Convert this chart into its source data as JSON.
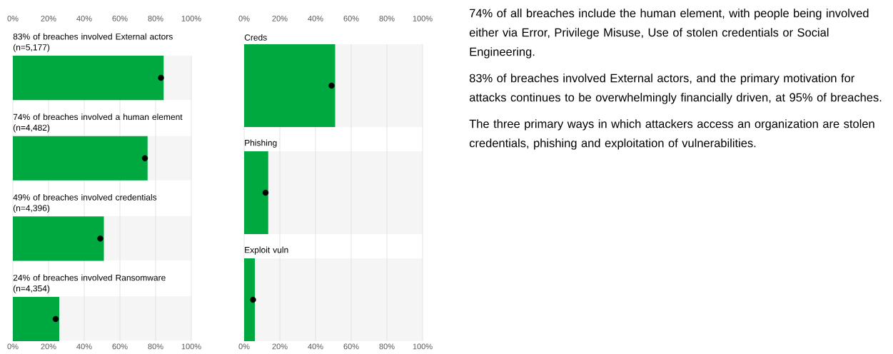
{
  "chart_data": [
    {
      "type": "bar",
      "orientation": "horizontal",
      "categories": [
        "83% of breaches involved External actors (n=5,177)",
        "74% of breaches involved a human element (n=4,482)",
        "49% of breaches involved credentials (n=4,396)",
        "24% of breaches involved Ransomware (n=4,354)"
      ],
      "xlim": [
        0,
        100
      ],
      "xticks": [
        {
          "value": 0,
          "label": "0%"
        },
        {
          "value": 20,
          "label": "20%"
        },
        {
          "value": 40,
          "label": "40%"
        },
        {
          "value": 60,
          "label": "60%"
        },
        {
          "value": 80,
          "label": "80%"
        },
        {
          "value": 100,
          "label": "100%"
        }
      ],
      "x2lim": [
        0,
        100
      ],
      "x2ticks": [
        {
          "value": 0,
          "label": "0%"
        },
        {
          "value": 20,
          "label": "20%"
        },
        {
          "value": 40,
          "label": "40%"
        },
        {
          "value": 60,
          "label": "60%"
        },
        {
          "value": 80,
          "label": "80%"
        },
        {
          "value": 100,
          "label": "100%"
        }
      ],
      "grid": "x",
      "marker": "circle",
      "series": [
        {
          "color": "#00a940",
          "values": [
            84.5,
            75.5,
            51,
            26
          ]
        },
        {
          "type": "scatter",
          "color": "#000000",
          "values": [
            83,
            74,
            49,
            24
          ]
        }
      ]
    },
    {
      "type": "bar",
      "orientation": "horizontal",
      "categories": [
        "Creds",
        "Phishing",
        "Exploit vuln"
      ],
      "xlim": [
        0,
        100
      ],
      "xticks": [
        {
          "value": 0,
          "label": "0%"
        },
        {
          "value": 20,
          "label": "20%"
        },
        {
          "value": 40,
          "label": "40%"
        },
        {
          "value": 60,
          "label": "60%"
        },
        {
          "value": 80,
          "label": "80%"
        },
        {
          "value": 100,
          "label": "100%"
        }
      ],
      "x2lim": [
        0,
        100
      ],
      "x2ticks": [
        {
          "value": 0,
          "label": "0%"
        },
        {
          "value": 20,
          "label": "20%"
        },
        {
          "value": 40,
          "label": "40%"
        },
        {
          "value": 60,
          "label": "60%"
        },
        {
          "value": 80,
          "label": "80%"
        },
        {
          "value": 100,
          "label": "100%"
        }
      ],
      "grid": "x",
      "marker": "circle",
      "series": [
        {
          "color": "#00a940",
          "values": [
            51,
            13.5,
            6
          ]
        },
        {
          "type": "scatter",
          "color": "#000000",
          "values": [
            49,
            12,
            5
          ]
        }
      ]
    },
    {
      "type": "other",
      "annotations": [
        "74% of all breaches include the human element, with people being involved either via Error, Privilege Misuse, Use of stolen credentials or Social Engineering.",
        "83% of breaches involved External actors, and the primary motivation for attacks continues to be overwhelmingly financially driven, at 95% of breaches.",
        "The three primary ways in which attackers access an organization are stolen credentials, phishing and exploitation of vulnerabilities."
      ]
    }
  ]
}
